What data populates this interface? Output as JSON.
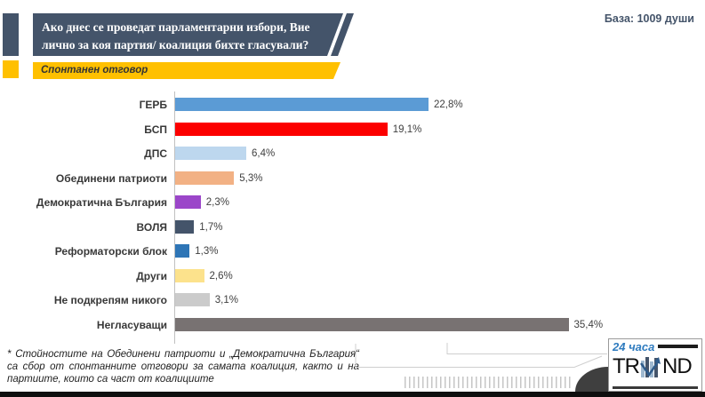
{
  "header": {
    "question": "Ако днес се проведат парламентарни избори, Вие лично за коя партия/ коалиция бихте гласували?",
    "base_label": "База: 1009 души",
    "subtitle": "Спонтанен отговор"
  },
  "chart_data": {
    "type": "bar",
    "orientation": "horizontal",
    "title": "",
    "xlabel": "",
    "ylabel": "",
    "xlim": [
      0,
      40
    ],
    "grid": false,
    "legend": "none",
    "categories": [
      "ГЕРБ",
      "БСП",
      "ДПС",
      "Обединени патриоти",
      "Демократична България",
      "ВОЛЯ",
      "Реформаторски блок",
      "Други",
      "Не подкрепям никого",
      "Негласуващи"
    ],
    "values": [
      22.8,
      19.1,
      6.4,
      5.3,
      2.3,
      1.7,
      1.3,
      2.6,
      3.1,
      35.4
    ],
    "value_labels": [
      "22,8%",
      "19,1%",
      "6,4%",
      "5,3%",
      "2,3%",
      "1,7%",
      "1,3%",
      "2,6%",
      "3,1%",
      "35,4%"
    ],
    "bar_colors": [
      "#5B9BD5",
      "#FC0000",
      "#BDD7EE",
      "#F2B184",
      "#9B46C9",
      "#44546A",
      "#2E75B6",
      "#FCE28C",
      "#CBCBCB",
      "#787272"
    ]
  },
  "footnote": "* Стойностите на Обединени патриоти и „Демократична България“ са сбор от спонтанните отговори за самата коалиция, както и на партиите, които са част от коалициите",
  "logos": {
    "news24": "24 часа",
    "trend_left": "TR",
    "trend_right": "ND"
  },
  "colors": {
    "accent_dark": "#44546A",
    "accent_yellow": "#FFC000",
    "axis": "#C0C0C0",
    "bottom_strip": "#0e0e0e"
  }
}
